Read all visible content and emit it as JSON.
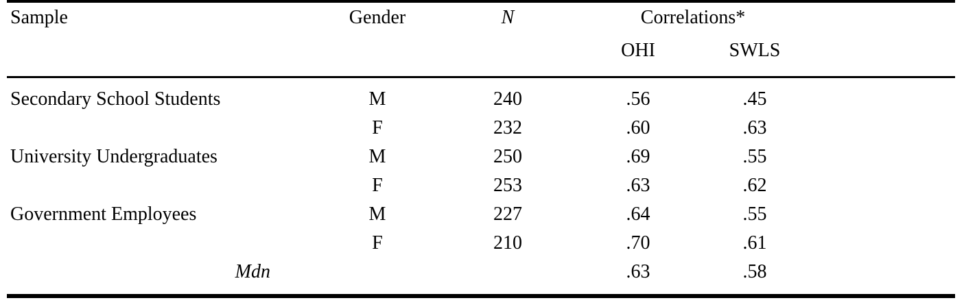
{
  "table": {
    "headers": {
      "sample": "Sample",
      "gender": "Gender",
      "n": "N",
      "correlations": "Correlations*",
      "ohi": "OHI",
      "swls": "SWLS"
    },
    "rows": [
      {
        "sample": "Secondary School Students",
        "gender": "M",
        "n": "240",
        "ohi": ".56",
        "swls": ".45"
      },
      {
        "sample": "",
        "gender": "F",
        "n": "232",
        "ohi": ".60",
        "swls": ".63"
      },
      {
        "sample": "University Undergraduates",
        "gender": "M",
        "n": "250",
        "ohi": ".69",
        "swls": ".55"
      },
      {
        "sample": "",
        "gender": "F",
        "n": "253",
        "ohi": ".63",
        "swls": ".62"
      },
      {
        "sample": "Government Employees",
        "gender": "M",
        "n": "227",
        "ohi": ".64",
        "swls": ".55"
      },
      {
        "sample": "",
        "gender": "F",
        "n": "210",
        "ohi": ".70",
        "swls": ".61"
      }
    ],
    "summary_row": {
      "label": "Mdn",
      "ohi": ".63",
      "swls": ".58"
    }
  },
  "colors": {
    "text": "#000000",
    "background": "#ffffff",
    "rule": "#000000"
  }
}
